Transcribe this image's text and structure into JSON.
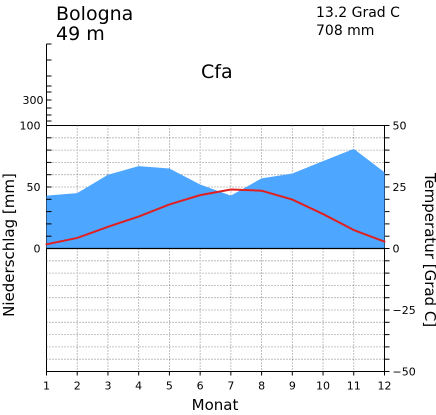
{
  "header": {
    "station": "Bologna",
    "elevation": "49  m",
    "mean_temperature": "13.2  Grad C",
    "annual_precipitation": "708  mm",
    "climate_class": "Cfa"
  },
  "colors": {
    "precipitation_fill": "#4da6ff",
    "temperature_line": "#e02020",
    "grid": "#666666",
    "axis": "#000000"
  },
  "chart_data": {
    "type": "area",
    "title": "",
    "xlabel": "Monat",
    "ylabel": "Niederschlag [mm]",
    "y2label": "Temperatur [Grad C]",
    "categories": [
      "1",
      "2",
      "3",
      "4",
      "5",
      "6",
      "7",
      "8",
      "9",
      "10",
      "11",
      "12"
    ],
    "x": [
      1,
      2,
      3,
      4,
      5,
      6,
      7,
      8,
      9,
      10,
      11,
      12
    ],
    "xlim": [
      1,
      12
    ],
    "ylim": [
      -100,
      100
    ],
    "y2lim": [
      -50,
      50
    ],
    "precipitation_extra_ticks": [
      {
        "value": 300,
        "label": "300"
      }
    ],
    "precipitation_ticks": [
      {
        "value": 100,
        "label": "100"
      },
      {
        "value": 50,
        "label": "50"
      },
      {
        "value": 0,
        "label": "0"
      }
    ],
    "temperature_ticks": [
      {
        "value": 50,
        "label": "50"
      },
      {
        "value": 25,
        "label": "25"
      },
      {
        "value": 0,
        "label": "0"
      },
      {
        "value": -25,
        "label": "−25"
      },
      {
        "value": -50,
        "label": "−50"
      }
    ],
    "grid": true,
    "series": [
      {
        "key": "precipitation",
        "type": "area",
        "axis": "left",
        "values": [
          43,
          45,
          60,
          67,
          65,
          52,
          43,
          57,
          61,
          71,
          81,
          62
        ]
      },
      {
        "key": "temperature",
        "type": "line",
        "axis": "right",
        "values": [
          1.7,
          4.3,
          8.8,
          13.0,
          17.9,
          21.7,
          24.0,
          23.5,
          19.9,
          14.0,
          7.5,
          2.8
        ]
      }
    ]
  }
}
